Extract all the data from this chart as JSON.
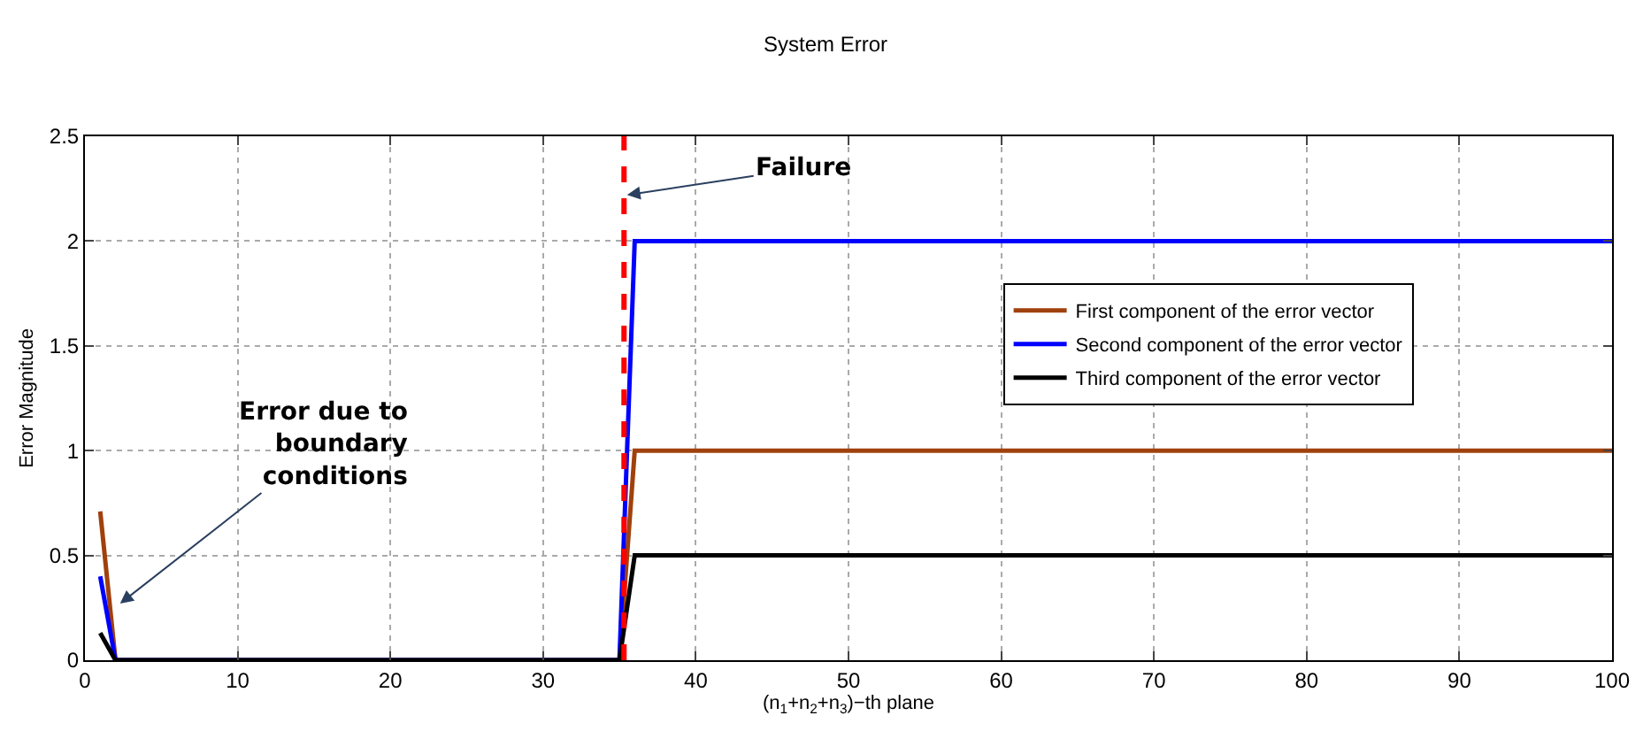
{
  "chart_data": {
    "type": "line",
    "title": "System Error",
    "xlabel": "(n$_{1}$+n$_{2}$+n$_{3}$)−th plane",
    "ylabel": "Error Magnitude",
    "x": [
      1,
      2,
      35,
      36,
      100
    ],
    "series": [
      {
        "name": "First component of the error vector",
        "color": "#a0410d",
        "values": [
          0.71,
          0,
          0,
          1,
          1
        ]
      },
      {
        "name": "Second component of the error vector",
        "color": "#0000ff",
        "values": [
          0.4,
          0,
          0,
          2,
          2
        ]
      },
      {
        "name": "Third component of the error vector",
        "color": "#000000",
        "values": [
          0.13,
          0,
          0,
          0.5,
          0.5
        ]
      }
    ],
    "ref_lines": [
      {
        "axis": "x",
        "value": 35.3,
        "color": "#ff0000",
        "line_style": "dashed"
      }
    ],
    "annotations": [
      {
        "text": "Failure",
        "x": 35.5,
        "y": 2.22
      },
      {
        "text": "Error due to\nboundary\nconditions",
        "x": 2.3,
        "y": 0.27
      }
    ],
    "xlim": [
      0,
      100
    ],
    "xticks": [
      0,
      10,
      20,
      30,
      40,
      50,
      60,
      70,
      80,
      90,
      100
    ],
    "ylim": [
      0,
      2.5
    ],
    "yticks": [
      0,
      0.5,
      1,
      1.5,
      2,
      2.5
    ],
    "grid": true,
    "legend": "right",
    "marker": "none",
    "line_style": "solid"
  }
}
